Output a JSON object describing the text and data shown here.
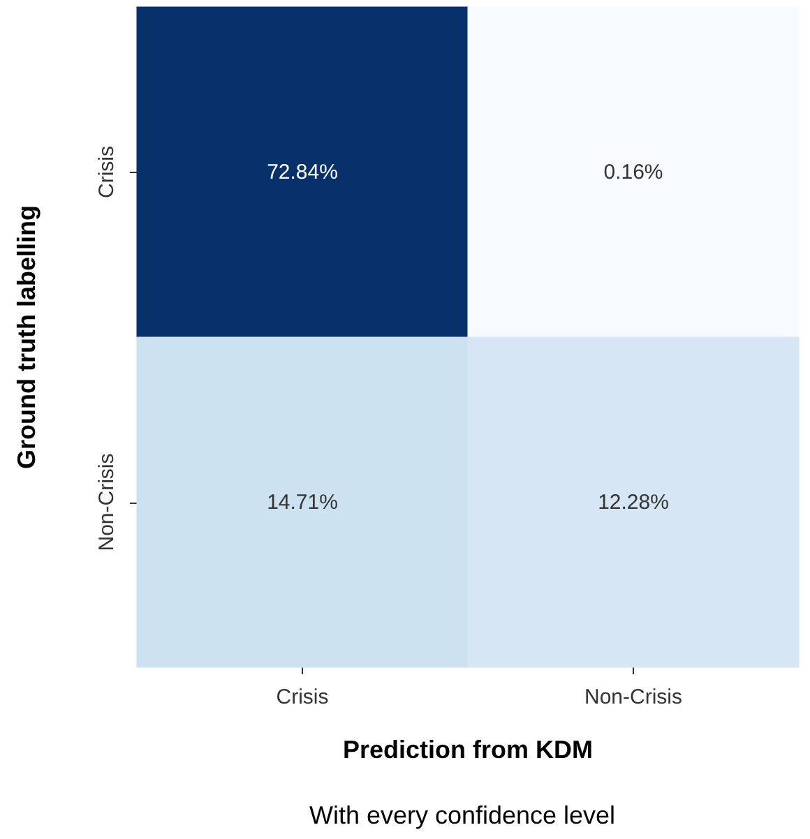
{
  "chart_data": {
    "type": "heatmap",
    "xlabel": "Prediction from KDM",
    "ylabel": "Ground truth labelling",
    "annotations": [
      "With every confidence level"
    ],
    "categories": [
      "Crisis",
      "Non-Crisis"
    ],
    "y_categories": [
      "Crisis",
      "Non-Crisis"
    ],
    "cells": [
      [
        72.84,
        0.16
      ],
      [
        14.71,
        12.28
      ]
    ],
    "cell_labels": [
      [
        "72.84%",
        "0.16%"
      ],
      [
        "14.71%",
        "12.28%"
      ]
    ]
  }
}
